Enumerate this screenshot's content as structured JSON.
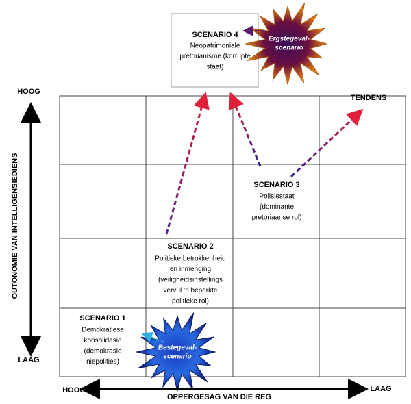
{
  "axes": {
    "y": {
      "title": "OUTONOMIE VAN INTELLIGENSIEDIENS",
      "high": "HOOG",
      "low": "LAAG"
    },
    "x": {
      "title": "OPPERGESAG VAN DIE REG",
      "high": "HOOG",
      "low": "LAAG"
    }
  },
  "trend": "TENDENS",
  "scenarios": [
    {
      "title": "SCENARIO 1",
      "description": [
        "Demokratiese",
        "konsolidasie",
        "(demokrasie",
        "niepolities)"
      ]
    },
    {
      "title": "SCENARIO 2",
      "description": [
        "Politieke betrokkenheid",
        "en inmenging",
        "(veiligheidsinstellings",
        "vervul ’n beperkte",
        "politieke rol)"
      ]
    },
    {
      "title": "SCENARIO 3",
      "description": [
        "Polisiestaat",
        "(dominante",
        "pretoriaanse rol)"
      ]
    },
    {
      "title": "SCENARIO 4",
      "description": [
        "Neopatrimoniale",
        "pretorianisme (korrupte",
        "staat)"
      ]
    }
  ],
  "bursts": {
    "worst": [
      "Ergstegeval-",
      "scenario"
    ],
    "best": [
      "Bestegeval-",
      "scenario"
    ]
  }
}
